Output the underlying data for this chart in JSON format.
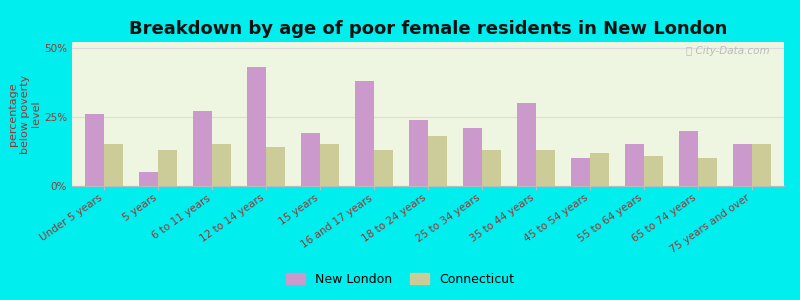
{
  "title": "Breakdown by age of poor female residents in New London",
  "ylabel": "percentage\nbelow poverty\nlevel",
  "categories": [
    "Under 5 years",
    "5 years",
    "6 to 11 years",
    "12 to 14 years",
    "15 years",
    "16 and 17 years",
    "18 to 24 years",
    "25 to 34 years",
    "35 to 44 years",
    "45 to 54 years",
    "55 to 64 years",
    "65 to 74 years",
    "75 years and over"
  ],
  "new_london": [
    26,
    5,
    27,
    43,
    19,
    38,
    24,
    21,
    30,
    10,
    15,
    20,
    15
  ],
  "connecticut": [
    15,
    13,
    15,
    14,
    15,
    13,
    18,
    13,
    13,
    12,
    11,
    10,
    15
  ],
  "nl_color": "#cc99cc",
  "ct_color": "#cccc99",
  "ylim": [
    0,
    52
  ],
  "yticks": [
    0,
    25,
    50
  ],
  "ytick_labels": [
    "0%",
    "25%",
    "50%"
  ],
  "bg_color": "#eef5e0",
  "outer_bg": "#00eeee",
  "bar_width": 0.35,
  "legend_labels": [
    "New London",
    "Connecticut"
  ],
  "title_fontsize": 13,
  "axis_label_fontsize": 8,
  "tick_fontsize": 7.5
}
